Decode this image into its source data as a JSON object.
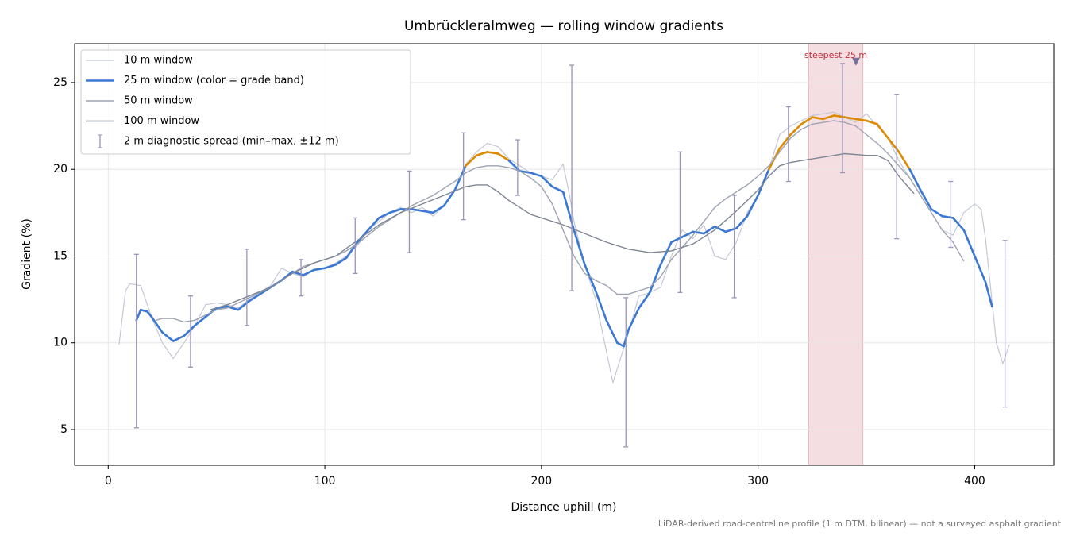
{
  "chart_data": {
    "type": "line",
    "title": "Umbrückleralmweg — rolling window gradients",
    "xlabel": "Distance uphill (m)",
    "ylabel": "Gradient (%)",
    "footnote": "LiDAR-derived road-centreline profile (1 m DTM, bilinear) — not a surveyed asphalt gradient",
    "xlim": [
      -15.5,
      436.5
    ],
    "ylim": [
      2.94,
      27.24
    ],
    "xticks": [
      0,
      100,
      200,
      300,
      400
    ],
    "yticks": [
      5,
      10,
      15,
      20,
      25
    ],
    "grid": true,
    "legend": "upper left",
    "series": [
      {
        "name": "10 m window",
        "color": "#c4c8d4",
        "width": 1.2,
        "x": [
          5,
          8,
          10,
          15,
          20,
          25,
          30,
          35,
          40,
          45,
          50,
          55,
          60,
          65,
          70,
          75,
          80,
          85,
          90,
          95,
          100,
          105,
          110,
          115,
          120,
          125,
          130,
          135,
          140,
          145,
          150,
          155,
          160,
          165,
          170,
          175,
          180,
          185,
          190,
          195,
          200,
          205,
          210,
          213,
          215,
          220,
          225,
          230,
          233,
          235,
          240,
          245,
          250,
          255,
          260,
          265,
          270,
          275,
          280,
          285,
          290,
          295,
          300,
          305,
          310,
          315,
          320,
          325,
          330,
          335,
          340,
          345,
          350,
          355,
          360,
          365,
          370,
          375,
          380,
          385,
          390,
          395,
          400,
          403,
          405,
          410,
          413,
          416
        ],
        "values": [
          9.9,
          13.0,
          13.4,
          13.3,
          11.5,
          10.0,
          9.1,
          10.0,
          11.0,
          12.2,
          12.3,
          12.2,
          12.0,
          12.5,
          12.9,
          13.3,
          14.3,
          14.0,
          13.8,
          14.2,
          14.3,
          14.6,
          15.0,
          15.6,
          16.5,
          17.0,
          17.5,
          17.8,
          17.5,
          17.8,
          17.3,
          17.9,
          18.8,
          20.3,
          21.0,
          21.5,
          21.3,
          20.6,
          20.2,
          19.8,
          19.6,
          19.4,
          20.3,
          18.5,
          17.0,
          14.5,
          12.5,
          9.5,
          7.7,
          8.5,
          10.5,
          12.7,
          12.9,
          13.2,
          15.0,
          16.5,
          16.0,
          16.8,
          15.0,
          14.8,
          15.8,
          17.5,
          18.5,
          20.0,
          22.0,
          22.5,
          22.8,
          23.1,
          23.2,
          23.3,
          23.0,
          22.7,
          23.2,
          22.5,
          21.8,
          20.5,
          19.5,
          18.5,
          17.5,
          16.5,
          16.2,
          17.5,
          18.0,
          17.7,
          16.0,
          10.0,
          8.8,
          9.9
        ]
      },
      {
        "name": "25 m window (color = grade band)",
        "color": "#3a78d4",
        "width": 2.6,
        "band_colors": [
          {
            "min": 20,
            "color": "#dd8a00"
          }
        ],
        "x": [
          13,
          15,
          18,
          20,
          25,
          30,
          35,
          40,
          45,
          50,
          55,
          60,
          65,
          70,
          75,
          80,
          85,
          90,
          95,
          100,
          105,
          110,
          115,
          120,
          125,
          130,
          135,
          140,
          145,
          150,
          155,
          160,
          165,
          170,
          175,
          180,
          185,
          190,
          195,
          200,
          205,
          210,
          215,
          220,
          225,
          230,
          235,
          238,
          240,
          245,
          250,
          255,
          260,
          265,
          270,
          275,
          280,
          285,
          290,
          295,
          300,
          305,
          310,
          315,
          320,
          325,
          330,
          335,
          340,
          345,
          350,
          355,
          360,
          365,
          370,
          375,
          380,
          385,
          390,
          395,
          400,
          405,
          408
        ],
        "values": [
          11.3,
          11.9,
          11.8,
          11.5,
          10.6,
          10.1,
          10.4,
          11.0,
          11.5,
          12.0,
          12.1,
          11.9,
          12.4,
          12.8,
          13.2,
          13.6,
          14.1,
          13.9,
          14.2,
          14.3,
          14.5,
          14.9,
          15.8,
          16.5,
          17.2,
          17.5,
          17.7,
          17.7,
          17.6,
          17.5,
          17.9,
          18.8,
          20.2,
          20.8,
          21.0,
          20.9,
          20.5,
          19.9,
          19.8,
          19.6,
          19.0,
          18.7,
          16.5,
          14.5,
          13.0,
          11.3,
          10.0,
          9.8,
          10.7,
          12.0,
          12.9,
          14.5,
          15.8,
          16.1,
          16.4,
          16.3,
          16.7,
          16.4,
          16.6,
          17.3,
          18.5,
          20.0,
          21.2,
          22.0,
          22.6,
          23.0,
          22.9,
          23.1,
          23.0,
          22.9,
          22.8,
          22.6,
          21.8,
          21.0,
          20.0,
          18.8,
          17.7,
          17.3,
          17.2,
          16.5,
          15.0,
          13.5,
          12.1
        ]
      },
      {
        "name": "50 m window",
        "color": "#9ea3b2",
        "width": 1.4,
        "x": [
          22,
          25,
          30,
          35,
          40,
          45,
          50,
          55,
          60,
          65,
          70,
          75,
          80,
          85,
          90,
          95,
          100,
          105,
          110,
          115,
          120,
          125,
          130,
          135,
          140,
          145,
          150,
          155,
          160,
          165,
          170,
          175,
          180,
          185,
          190,
          195,
          200,
          205,
          210,
          215,
          220,
          225,
          230,
          235,
          240,
          245,
          250,
          255,
          260,
          265,
          270,
          275,
          280,
          285,
          290,
          295,
          300,
          305,
          310,
          315,
          320,
          325,
          330,
          335,
          340,
          345,
          350,
          355,
          360,
          365,
          370,
          375,
          380,
          385,
          390,
          395
        ],
        "values": [
          11.3,
          11.4,
          11.4,
          11.2,
          11.3,
          11.6,
          11.9,
          12.0,
          12.3,
          12.6,
          12.9,
          13.2,
          13.6,
          14.0,
          14.4,
          14.6,
          14.8,
          15.0,
          15.3,
          15.7,
          16.2,
          16.7,
          17.1,
          17.5,
          17.9,
          18.2,
          18.5,
          18.9,
          19.3,
          19.8,
          20.1,
          20.2,
          20.2,
          20.1,
          19.9,
          19.5,
          19.0,
          18.0,
          16.5,
          15.0,
          14.0,
          13.6,
          13.3,
          12.8,
          12.8,
          13.0,
          13.2,
          13.8,
          14.8,
          15.5,
          16.2,
          17.0,
          17.8,
          18.3,
          18.7,
          19.1,
          19.6,
          20.2,
          21.0,
          21.8,
          22.3,
          22.6,
          22.7,
          22.8,
          22.7,
          22.5,
          22.0,
          21.5,
          20.9,
          20.2,
          19.5,
          18.5,
          17.5,
          16.5,
          15.8,
          14.7
        ]
      },
      {
        "name": "100 m window",
        "color": "#7f8694",
        "width": 1.4,
        "x": [
          47,
          55,
          65,
          75,
          85,
          95,
          105,
          115,
          125,
          135,
          145,
          155,
          165,
          170,
          175,
          180,
          185,
          190,
          195,
          200,
          210,
          220,
          230,
          240,
          250,
          260,
          270,
          280,
          290,
          300,
          305,
          310,
          315,
          320,
          330,
          340,
          350,
          355,
          360,
          365,
          372
        ],
        "values": [
          11.9,
          12.2,
          12.7,
          13.2,
          14.0,
          14.6,
          15.0,
          15.9,
          16.8,
          17.5,
          18.0,
          18.5,
          19.0,
          19.1,
          19.1,
          18.7,
          18.2,
          17.8,
          17.4,
          17.2,
          16.8,
          16.3,
          15.8,
          15.4,
          15.2,
          15.3,
          15.7,
          16.5,
          17.6,
          18.8,
          19.6,
          20.2,
          20.4,
          20.5,
          20.7,
          20.9,
          20.8,
          20.8,
          20.5,
          19.6,
          18.6
        ]
      }
    ],
    "errorbars": {
      "name": "2 m diagnostic spread (min–max, ±12 m)",
      "color": "#9a93ba",
      "x": [
        13,
        38,
        64,
        89,
        114,
        139,
        164,
        189,
        214,
        239,
        264,
        289,
        314,
        339,
        364,
        389,
        414
      ],
      "low": [
        5.1,
        8.6,
        11.0,
        12.7,
        14.0,
        15.2,
        17.1,
        18.5,
        13.0,
        4.0,
        12.9,
        12.6,
        19.3,
        19.8,
        16.0,
        15.5,
        6.3
      ],
      "high": [
        15.1,
        12.7,
        15.4,
        14.8,
        17.2,
        19.9,
        22.1,
        21.7,
        26.0,
        12.6,
        21.0,
        18.5,
        23.6,
        26.1,
        24.3,
        19.3,
        15.9
      ]
    },
    "highlight": {
      "label": "steepest 25 m",
      "x": [
        323.4,
        348.4
      ],
      "color": "#d98a94",
      "label_color": "#c0303c",
      "marker_x": 345.2,
      "marker_y": 26.2,
      "marker_color": "#7a6f9a"
    }
  }
}
